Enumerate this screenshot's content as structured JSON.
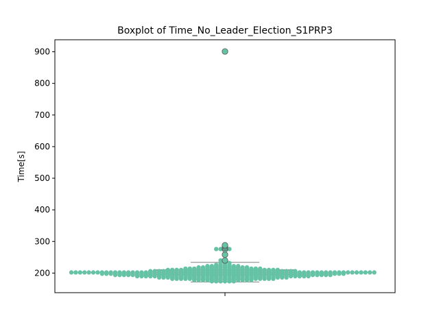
{
  "chart_data": {
    "type": "boxplot-swarm",
    "title": "Boxplot of Time_No_Leader_Election_S1PRP3",
    "xlabel": "",
    "ylabel": "Time[s]",
    "ylim": [
      138,
      938
    ],
    "yticks": [
      200,
      300,
      400,
      500,
      600,
      700,
      800,
      900
    ],
    "grid": false,
    "colors": {
      "points": "#66c2a5",
      "median": "#e8583a",
      "box_edge": "#4d4d4d",
      "whisker": "#808080"
    },
    "box": {
      "q1": 196,
      "median": 202,
      "q3": 210,
      "whisker_low": 172,
      "whisker_high": 234
    },
    "outliers": [
      240,
      258,
      275,
      280,
      285,
      288,
      901
    ],
    "swarm": [
      {
        "y": 202,
        "n": 70
      },
      {
        "y": 198,
        "n": 56
      },
      {
        "y": 194,
        "n": 50
      },
      {
        "y": 190,
        "n": 40
      },
      {
        "y": 186,
        "n": 30
      },
      {
        "y": 182,
        "n": 24
      },
      {
        "y": 178,
        "n": 14
      },
      {
        "y": 174,
        "n": 6
      },
      {
        "y": 206,
        "n": 34
      },
      {
        "y": 210,
        "n": 26
      },
      {
        "y": 214,
        "n": 18
      },
      {
        "y": 218,
        "n": 12
      },
      {
        "y": 222,
        "n": 8
      },
      {
        "y": 226,
        "n": 4
      },
      {
        "y": 232,
        "n": 3
      },
      {
        "y": 240,
        "n": 2
      },
      {
        "y": 276,
        "n": 4
      }
    ]
  }
}
